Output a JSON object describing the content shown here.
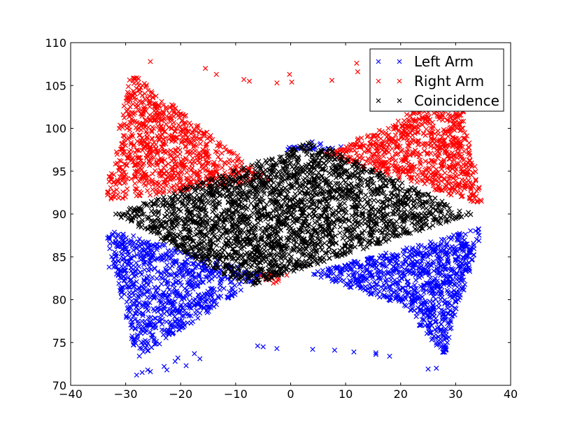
{
  "chart_data": {
    "type": "scatter",
    "title": "",
    "xlabel": "",
    "ylabel": "",
    "xlim": [
      -40,
      40
    ],
    "ylim": [
      70,
      110
    ],
    "xticks": [
      -40,
      -30,
      -20,
      -10,
      0,
      10,
      20,
      30,
      40
    ],
    "yticks": [
      70,
      75,
      80,
      85,
      90,
      95,
      100,
      105,
      110
    ],
    "grid": false,
    "legend": "top-right",
    "marker": "x",
    "series": [
      {
        "name": "Left Arm",
        "color": "#0000ff",
        "region": {
          "left_wing": [
            [
              -34,
              88.5
            ],
            [
              -28,
              73
            ],
            [
              -8,
              81.5
            ],
            [
              -5,
              83
            ]
          ],
          "right_wing": [
            [
              3,
              83
            ],
            [
              20,
              79.5
            ],
            [
              28,
              73.5
            ],
            [
              35,
              88.5
            ]
          ],
          "top_cap": [
            [
              -2,
              97.5
            ],
            [
              4,
              98.5
            ],
            [
              12,
              97.5
            ]
          ]
        },
        "outliers": [
          [
            -33,
            83.8
          ],
          [
            -28,
            71.2
          ],
          [
            -27,
            71.5
          ],
          [
            -26,
            71.8
          ],
          [
            -25.5,
            71.6
          ],
          [
            -23,
            72.2
          ],
          [
            -22.5,
            71.8
          ],
          [
            -21,
            72.8
          ],
          [
            -20.5,
            73.2
          ],
          [
            -19,
            72.3
          ],
          [
            -17.5,
            73.7
          ],
          [
            -16.5,
            73.1
          ],
          [
            -6,
            74.6
          ],
          [
            -5,
            74.5
          ],
          [
            -2.5,
            74.3
          ],
          [
            4,
            74.2
          ],
          [
            8,
            74.1
          ],
          [
            11.5,
            73.9
          ],
          [
            15.5,
            73.8
          ],
          [
            15.5,
            73.6
          ],
          [
            18,
            73.4
          ],
          [
            25,
            71.9
          ],
          [
            26.5,
            72
          ]
        ]
      },
      {
        "name": "Right Arm",
        "color": "#ff0000",
        "region": {
          "left_wing": [
            [
              -34,
              91.5
            ],
            [
              -29,
              106.5
            ],
            [
              -8,
              96
            ],
            [
              -3,
              94
            ]
          ],
          "right_wing": [
            [
              6,
              97
            ],
            [
              20,
              101
            ],
            [
              30,
              106.5
            ],
            [
              35,
              91
            ]
          ],
          "bottom_cap": [
            [
              -6,
              83
            ],
            [
              -3,
              81.5
            ],
            [
              0,
              83
            ]
          ]
        },
        "outliers": [
          [
            -25.5,
            107.8
          ],
          [
            -15.5,
            107
          ],
          [
            -13.5,
            106.3
          ],
          [
            -8.5,
            105.7
          ],
          [
            -7.5,
            105.5
          ],
          [
            -2.5,
            105.3
          ],
          [
            -0.2,
            106.3
          ],
          [
            0.2,
            105.4
          ],
          [
            7.5,
            105.6
          ],
          [
            12,
            107.6
          ],
          [
            12.2,
            106.6
          ]
        ]
      },
      {
        "name": "Coincidence",
        "color": "#000000",
        "region": {
          "diamond": [
            [
              -32,
              90
            ],
            [
              4,
              98.5
            ],
            [
              33,
              90
            ],
            [
              -8,
              81.5
            ]
          ]
        },
        "outliers": []
      }
    ]
  }
}
